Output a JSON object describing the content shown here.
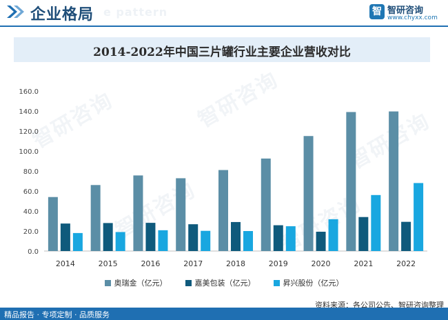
{
  "header": {
    "title": "企业格局",
    "ghost_text": "e pattern",
    "brand_name": "智研咨询",
    "brand_url": "www.chyxx.com",
    "brand_logo_glyph": "智",
    "brand_color": "#1f77b4"
  },
  "watermark_text": "智研咨询",
  "chart_data": {
    "type": "bar",
    "title": "2014-2022年中国三片罐行业主要企业营收对比",
    "categories": [
      "2014",
      "2015",
      "2016",
      "2017",
      "2018",
      "2019",
      "2020",
      "2021",
      "2022"
    ],
    "series": [
      {
        "name": "奥瑞金（亿元）",
        "color": "#5b8ea6",
        "values": [
          54.0,
          66.0,
          75.6,
          72.8,
          81.0,
          92.5,
          115.0,
          139.0,
          139.6
        ]
      },
      {
        "name": "嘉美包装（亿元）",
        "color": "#0f5a7c",
        "values": [
          27.5,
          28.0,
          28.2,
          26.8,
          29.0,
          25.8,
          19.3,
          34.0,
          29.2
        ]
      },
      {
        "name": "昇兴股份（亿元）",
        "color": "#19a7e0",
        "values": [
          18.0,
          19.0,
          20.8,
          20.2,
          20.0,
          24.8,
          31.8,
          56.0,
          68.0
        ]
      }
    ],
    "ylim": [
      0,
      160
    ],
    "yticks": [
      "0.0",
      "20.0",
      "40.0",
      "60.0",
      "80.0",
      "100.0",
      "120.0",
      "140.0",
      "160.0"
    ],
    "grid": false,
    "legend_position": "bottom"
  },
  "source": "资料来源：各公司公告、智研咨询整理",
  "footer": "精品报告 · 专项定制 · 品质服务"
}
